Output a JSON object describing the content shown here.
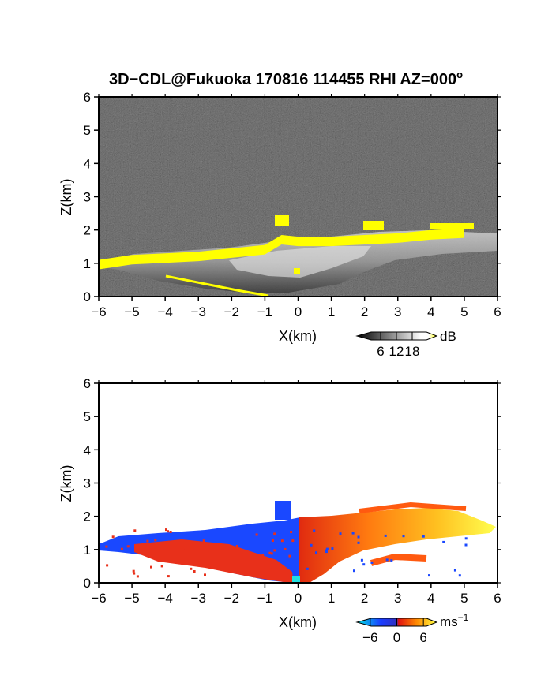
{
  "chart_data": [
    {
      "type": "heatmap",
      "title": "3D−CDL@Fukuoka 170816 114455 RHI AZ=000",
      "title_superscript": "o",
      "xlabel": "X(km)",
      "ylabel": "Z(km)",
      "xlim": [
        -6,
        6
      ],
      "ylim": [
        0,
        6
      ],
      "x_ticks": [
        "−6",
        "−5",
        "−4",
        "−3",
        "−2",
        "−1",
        "0",
        "1",
        "2",
        "3",
        "4",
        "5",
        "6"
      ],
      "y_ticks": [
        "0",
        "1",
        "2",
        "3",
        "4",
        "5",
        "6"
      ],
      "colorbar": {
        "unit": "dB",
        "ticks": [
          "6",
          "12",
          "18"
        ],
        "tick_values": [
          6,
          12,
          18
        ],
        "range": [
          0,
          24
        ],
        "colors": [
          "#000000",
          "#ffffff",
          "#ffff00"
        ]
      },
      "background_color": "#222222",
      "highlight_color": "#ffff00",
      "cloud_base_km": [
        {
          "x": -6.0,
          "z": 1.1
        },
        {
          "x": -5.0,
          "z": 1.25
        },
        {
          "x": -4.0,
          "z": 1.3
        },
        {
          "x": -3.0,
          "z": 1.35
        },
        {
          "x": -2.0,
          "z": 1.45
        },
        {
          "x": -1.0,
          "z": 1.55
        },
        {
          "x": -0.5,
          "z": 1.85
        },
        {
          "x": 0.0,
          "z": 1.8
        },
        {
          "x": 1.0,
          "z": 1.8
        },
        {
          "x": 2.0,
          "z": 1.85
        },
        {
          "x": 3.0,
          "z": 1.9
        },
        {
          "x": 4.0,
          "z": 2.0
        },
        {
          "x": 5.0,
          "z": 2.05
        }
      ]
    },
    {
      "type": "heatmap",
      "xlabel": "X(km)",
      "ylabel": "Z(km)",
      "xlim": [
        -6,
        6
      ],
      "ylim": [
        0,
        6
      ],
      "x_ticks": [
        "−6",
        "−5",
        "−4",
        "−3",
        "−2",
        "−1",
        "0",
        "1",
        "2",
        "3",
        "4",
        "5",
        "6"
      ],
      "y_ticks": [
        "0",
        "1",
        "2",
        "3",
        "4",
        "5",
        "6"
      ],
      "colorbar": {
        "unit": "ms",
        "unit_superscript": "−1",
        "ticks": [
          "−6",
          "0",
          "6"
        ],
        "tick_values": [
          -6,
          0,
          6
        ],
        "range": [
          -9,
          9
        ],
        "colors": [
          "#00e5e5",
          "#1a3cff",
          "#e01010",
          "#ff8a00",
          "#ffff40"
        ]
      },
      "background_color": "#ffffff"
    }
  ]
}
